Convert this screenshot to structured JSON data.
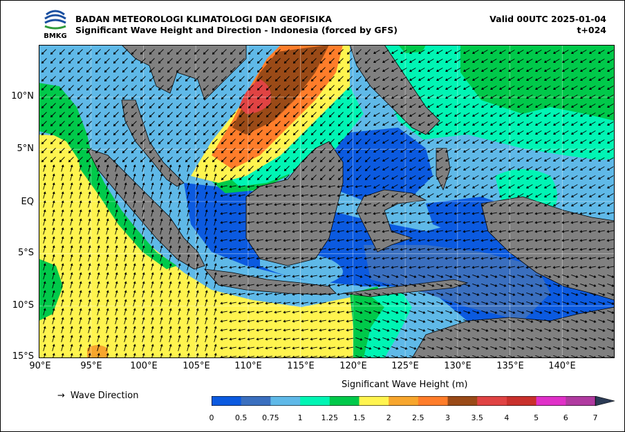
{
  "header": {
    "agency": "BADAN METEOROLOGI KLIMATOLOGI DAN GEOFISIKA",
    "product": "Significant Wave Height and Direction - Indonesia (forced by GFS)",
    "valid": "Valid 00UTC 2025-01-04",
    "lead": "t+024",
    "logo_text": "BMKG"
  },
  "axes": {
    "lon_ticks": [
      "90°E",
      "95°E",
      "100°E",
      "105°E",
      "110°E",
      "115°E",
      "120°E",
      "125°E",
      "130°E",
      "135°E",
      "140°E"
    ],
    "lon_values": [
      90,
      95,
      100,
      105,
      110,
      115,
      120,
      125,
      130,
      135,
      140
    ],
    "lat_ticks": [
      "10°N",
      "5°N",
      "EQ",
      "5°S",
      "10°S",
      "15°S"
    ],
    "lat_values": [
      10,
      5,
      0,
      -5,
      -10,
      -15
    ],
    "lon_range": [
      90,
      145
    ],
    "lat_range": [
      -15,
      15
    ],
    "grid": true
  },
  "legend": {
    "direction_label": "Wave Direction",
    "direction_symbol": "→",
    "colorbar_title": "Significant Wave Height (m)",
    "colorbar_labels": [
      "0",
      "0.5",
      "0.75",
      "1",
      "1.25",
      "1.5",
      "2",
      "2.5",
      "3",
      "3.5",
      "4",
      "5",
      "6",
      "7"
    ],
    "colorbar_colors": [
      "#0b5ae0",
      "#3a6fbf",
      "#5fb9e8",
      "#00f5b4",
      "#00c94a",
      "#fff44f",
      "#f7a62d",
      "#ff7d2a",
      "#9a4a17",
      "#e04343",
      "#c9302c",
      "#e030c8",
      "#b03aa0"
    ],
    "extend_color": "#2b3b55"
  },
  "colors": {
    "land": "#808080",
    "coast": "#000000"
  }
}
